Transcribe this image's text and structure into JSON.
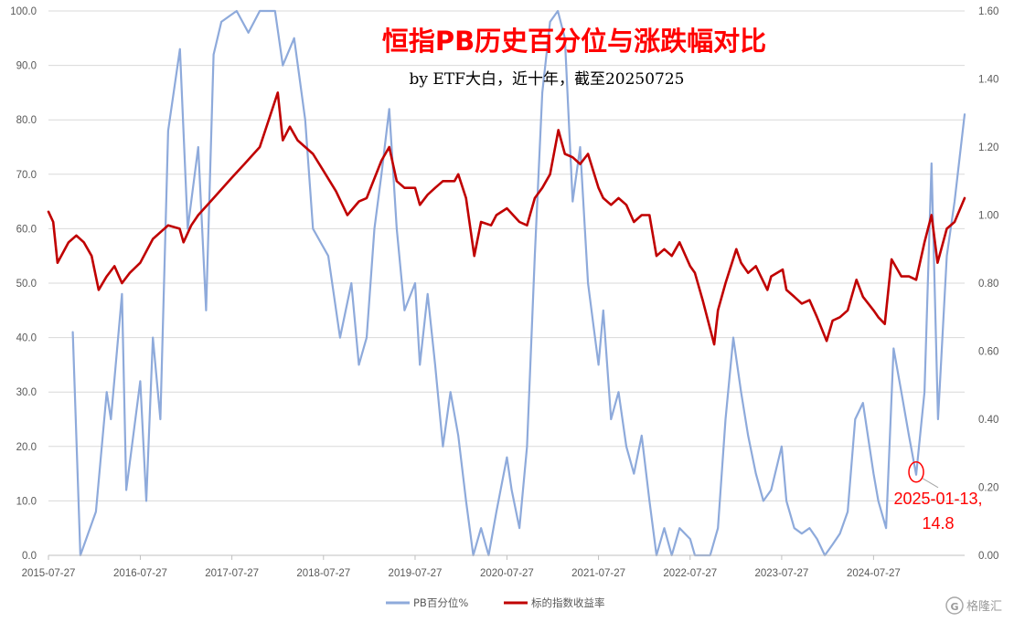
{
  "chart_data": {
    "type": "line",
    "title": "恒指PB历史百分位与涨跌幅对比",
    "subtitle": "by ETF大白，近十年，截至20250725",
    "x_tick_labels": [
      "2015-07-27",
      "2016-07-27",
      "2017-07-27",
      "2018-07-27",
      "2019-07-27",
      "2020-07-27",
      "2021-07-27",
      "2022-07-27",
      "2023-07-27",
      "2024-07-27"
    ],
    "x_range": [
      "2015-07-27",
      "2025-07-25"
    ],
    "y_left": {
      "ylim": [
        0,
        100
      ],
      "tick_labels": [
        "0.0",
        "10.0",
        "20.0",
        "30.0",
        "40.0",
        "50.0",
        "60.0",
        "70.0",
        "80.0",
        "90.0",
        "100.0"
      ]
    },
    "y_right": {
      "ylim": [
        0,
        1.6
      ],
      "tick_labels": [
        "0.00",
        "0.20",
        "0.40",
        "0.60",
        "0.80",
        "1.00",
        "1.20",
        "1.40",
        "1.60"
      ]
    },
    "grid": true,
    "legend_position": "bottom",
    "series": [
      {
        "name": "PB百分位%",
        "axis": "left",
        "color": "#8eaadb",
        "points": [
          [
            "2015-07-27",
            null
          ],
          [
            "2015-11-01",
            41
          ],
          [
            "2015-12-01",
            0
          ],
          [
            "2016-02-01",
            8
          ],
          [
            "2016-03-15",
            30
          ],
          [
            "2016-04-01",
            25
          ],
          [
            "2016-05-15",
            48
          ],
          [
            "2016-06-01",
            12
          ],
          [
            "2016-07-27",
            32
          ],
          [
            "2016-08-20",
            10
          ],
          [
            "2016-09-15",
            40
          ],
          [
            "2016-10-15",
            25
          ],
          [
            "2016-11-15",
            78
          ],
          [
            "2017-01-01",
            93
          ],
          [
            "2017-02-01",
            60
          ],
          [
            "2017-03-15",
            75
          ],
          [
            "2017-04-15",
            45
          ],
          [
            "2017-05-15",
            92
          ],
          [
            "2017-06-15",
            98
          ],
          [
            "2017-08-15",
            100
          ],
          [
            "2017-10-01",
            96
          ],
          [
            "2017-11-15",
            100
          ],
          [
            "2017-12-15",
            100
          ],
          [
            "2018-01-15",
            100
          ],
          [
            "2018-02-15",
            90
          ],
          [
            "2018-04-01",
            95
          ],
          [
            "2018-05-15",
            80
          ],
          [
            "2018-06-15",
            60
          ],
          [
            "2018-08-15",
            55
          ],
          [
            "2018-10-01",
            40
          ],
          [
            "2018-11-15",
            50
          ],
          [
            "2018-12-15",
            35
          ],
          [
            "2019-01-15",
            40
          ],
          [
            "2019-02-15",
            60
          ],
          [
            "2019-03-15",
            70
          ],
          [
            "2019-04-15",
            82
          ],
          [
            "2019-05-15",
            60
          ],
          [
            "2019-06-15",
            45
          ],
          [
            "2019-07-27",
            50
          ],
          [
            "2019-08-15",
            35
          ],
          [
            "2019-09-15",
            48
          ],
          [
            "2019-10-15",
            35
          ],
          [
            "2019-11-15",
            20
          ],
          [
            "2019-12-15",
            30
          ],
          [
            "2020-01-15",
            22
          ],
          [
            "2020-02-15",
            10
          ],
          [
            "2020-03-15",
            0
          ],
          [
            "2020-04-15",
            5
          ],
          [
            "2020-05-15",
            0
          ],
          [
            "2020-06-15",
            8
          ],
          [
            "2020-07-27",
            18
          ],
          [
            "2020-08-15",
            12
          ],
          [
            "2020-09-15",
            5
          ],
          [
            "2020-10-15",
            20
          ],
          [
            "2020-11-15",
            55
          ],
          [
            "2020-12-15",
            85
          ],
          [
            "2021-01-15",
            98
          ],
          [
            "2021-02-15",
            100
          ],
          [
            "2021-03-15",
            95
          ],
          [
            "2021-04-15",
            65
          ],
          [
            "2021-05-15",
            75
          ],
          [
            "2021-06-15",
            50
          ],
          [
            "2021-07-27",
            35
          ],
          [
            "2021-08-15",
            45
          ],
          [
            "2021-09-15",
            25
          ],
          [
            "2021-10-15",
            30
          ],
          [
            "2021-11-15",
            20
          ],
          [
            "2021-12-15",
            15
          ],
          [
            "2022-01-15",
            22
          ],
          [
            "2022-02-15",
            10
          ],
          [
            "2022-03-15",
            0
          ],
          [
            "2022-04-15",
            5
          ],
          [
            "2022-05-15",
            0
          ],
          [
            "2022-06-15",
            5
          ],
          [
            "2022-07-27",
            3
          ],
          [
            "2022-08-15",
            0
          ],
          [
            "2022-09-15",
            0
          ],
          [
            "2022-10-15",
            0
          ],
          [
            "2022-11-15",
            5
          ],
          [
            "2022-12-15",
            25
          ],
          [
            "2023-01-15",
            40
          ],
          [
            "2023-02-15",
            30
          ],
          [
            "2023-03-15",
            22
          ],
          [
            "2023-04-15",
            15
          ],
          [
            "2023-05-15",
            10
          ],
          [
            "2023-06-15",
            12
          ],
          [
            "2023-07-27",
            20
          ],
          [
            "2023-08-15",
            10
          ],
          [
            "2023-09-15",
            5
          ],
          [
            "2023-10-15",
            4
          ],
          [
            "2023-11-15",
            5
          ],
          [
            "2023-12-15",
            3
          ],
          [
            "2024-01-15",
            0
          ],
          [
            "2024-02-15",
            2
          ],
          [
            "2024-03-15",
            4
          ],
          [
            "2024-04-15",
            8
          ],
          [
            "2024-05-15",
            25
          ],
          [
            "2024-06-15",
            28
          ],
          [
            "2024-07-27",
            15
          ],
          [
            "2024-08-15",
            10
          ],
          [
            "2024-09-15",
            5
          ],
          [
            "2024-10-15",
            38
          ],
          [
            "2024-11-15",
            30
          ],
          [
            "2024-12-15",
            22
          ],
          [
            "2025-01-13",
            14.8
          ],
          [
            "2025-02-15",
            30
          ],
          [
            "2025-03-15",
            72
          ],
          [
            "2025-04-10",
            25
          ],
          [
            "2025-05-15",
            55
          ],
          [
            "2025-06-15",
            65
          ],
          [
            "2025-07-25",
            81
          ]
        ]
      },
      {
        "name": "标的指数收益率",
        "axis": "right",
        "color": "#c00000",
        "points": [
          [
            "2015-07-27",
            1.01
          ],
          [
            "2015-08-15",
            0.98
          ],
          [
            "2015-09-01",
            0.86
          ],
          [
            "2015-10-15",
            0.92
          ],
          [
            "2015-11-15",
            0.94
          ],
          [
            "2015-12-15",
            0.92
          ],
          [
            "2016-01-15",
            0.88
          ],
          [
            "2016-02-12",
            0.78
          ],
          [
            "2016-03-15",
            0.82
          ],
          [
            "2016-04-15",
            0.85
          ],
          [
            "2016-05-15",
            0.8
          ],
          [
            "2016-06-15",
            0.83
          ],
          [
            "2016-07-27",
            0.86
          ],
          [
            "2016-09-15",
            0.93
          ],
          [
            "2016-11-15",
            0.97
          ],
          [
            "2016-12-31",
            0.96
          ],
          [
            "2017-01-15",
            0.92
          ],
          [
            "2017-02-15",
            0.97
          ],
          [
            "2017-03-15",
            1.0
          ],
          [
            "2017-05-15",
            1.05
          ],
          [
            "2017-07-27",
            1.11
          ],
          [
            "2017-09-15",
            1.15
          ],
          [
            "2017-11-15",
            1.2
          ],
          [
            "2018-01-26",
            1.36
          ],
          [
            "2018-02-15",
            1.22
          ],
          [
            "2018-03-15",
            1.26
          ],
          [
            "2018-04-15",
            1.22
          ],
          [
            "2018-05-15",
            1.2
          ],
          [
            "2018-06-15",
            1.18
          ],
          [
            "2018-07-27",
            1.13
          ],
          [
            "2018-09-15",
            1.07
          ],
          [
            "2018-10-30",
            1.0
          ],
          [
            "2018-12-15",
            1.04
          ],
          [
            "2019-01-15",
            1.05
          ],
          [
            "2019-03-15",
            1.16
          ],
          [
            "2019-04-15",
            1.2
          ],
          [
            "2019-05-15",
            1.1
          ],
          [
            "2019-06-15",
            1.08
          ],
          [
            "2019-07-27",
            1.08
          ],
          [
            "2019-08-15",
            1.03
          ],
          [
            "2019-09-15",
            1.06
          ],
          [
            "2019-10-15",
            1.08
          ],
          [
            "2019-11-15",
            1.1
          ],
          [
            "2019-12-31",
            1.1
          ],
          [
            "2020-01-15",
            1.12
          ],
          [
            "2020-02-15",
            1.05
          ],
          [
            "2020-03-19",
            0.88
          ],
          [
            "2020-04-15",
            0.98
          ],
          [
            "2020-05-25",
            0.97
          ],
          [
            "2020-06-15",
            1.0
          ],
          [
            "2020-07-27",
            1.02
          ],
          [
            "2020-09-15",
            0.98
          ],
          [
            "2020-10-15",
            0.97
          ],
          [
            "2020-11-15",
            1.05
          ],
          [
            "2020-12-15",
            1.08
          ],
          [
            "2021-01-15",
            1.12
          ],
          [
            "2021-02-17",
            1.25
          ],
          [
            "2021-03-15",
            1.18
          ],
          [
            "2021-04-15",
            1.17
          ],
          [
            "2021-05-15",
            1.15
          ],
          [
            "2021-06-15",
            1.18
          ],
          [
            "2021-07-27",
            1.08
          ],
          [
            "2021-08-15",
            1.05
          ],
          [
            "2021-09-15",
            1.03
          ],
          [
            "2021-10-15",
            1.05
          ],
          [
            "2021-11-15",
            1.03
          ],
          [
            "2021-12-15",
            0.98
          ],
          [
            "2022-01-15",
            1.0
          ],
          [
            "2022-02-15",
            1.0
          ],
          [
            "2022-03-15",
            0.88
          ],
          [
            "2022-04-15",
            0.9
          ],
          [
            "2022-05-15",
            0.88
          ],
          [
            "2022-06-15",
            0.92
          ],
          [
            "2022-07-27",
            0.85
          ],
          [
            "2022-08-15",
            0.83
          ],
          [
            "2022-09-15",
            0.75
          ],
          [
            "2022-10-31",
            0.62
          ],
          [
            "2022-11-15",
            0.72
          ],
          [
            "2022-12-15",
            0.8
          ],
          [
            "2023-01-27",
            0.9
          ],
          [
            "2023-02-15",
            0.86
          ],
          [
            "2023-03-15",
            0.83
          ],
          [
            "2023-04-15",
            0.85
          ],
          [
            "2023-05-31",
            0.78
          ],
          [
            "2023-06-15",
            0.82
          ],
          [
            "2023-07-31",
            0.84
          ],
          [
            "2023-08-15",
            0.78
          ],
          [
            "2023-09-15",
            0.76
          ],
          [
            "2023-10-15",
            0.74
          ],
          [
            "2023-11-15",
            0.75
          ],
          [
            "2023-12-15",
            0.7
          ],
          [
            "2024-01-22",
            0.63
          ],
          [
            "2024-02-15",
            0.69
          ],
          [
            "2024-03-15",
            0.7
          ],
          [
            "2024-04-15",
            0.72
          ],
          [
            "2024-05-20",
            0.81
          ],
          [
            "2024-06-15",
            0.76
          ],
          [
            "2024-07-27",
            0.72
          ],
          [
            "2024-08-15",
            0.7
          ],
          [
            "2024-09-10",
            0.68
          ],
          [
            "2024-10-07",
            0.87
          ],
          [
            "2024-11-15",
            0.82
          ],
          [
            "2024-12-15",
            0.82
          ],
          [
            "2025-01-13",
            0.81
          ],
          [
            "2025-02-15",
            0.92
          ],
          [
            "2025-03-15",
            1.0
          ],
          [
            "2025-04-08",
            0.86
          ],
          [
            "2025-05-15",
            0.96
          ],
          [
            "2025-06-15",
            0.98
          ],
          [
            "2025-07-25",
            1.05
          ]
        ]
      }
    ],
    "annotations": [
      {
        "label_lines": [
          "2025-01-13,",
          "14.8"
        ],
        "date": "2025-01-13",
        "value": 14.8,
        "axis": "left",
        "color": "#ff0000"
      }
    ]
  },
  "watermark": {
    "glyph": "G",
    "text": "格隆汇"
  }
}
